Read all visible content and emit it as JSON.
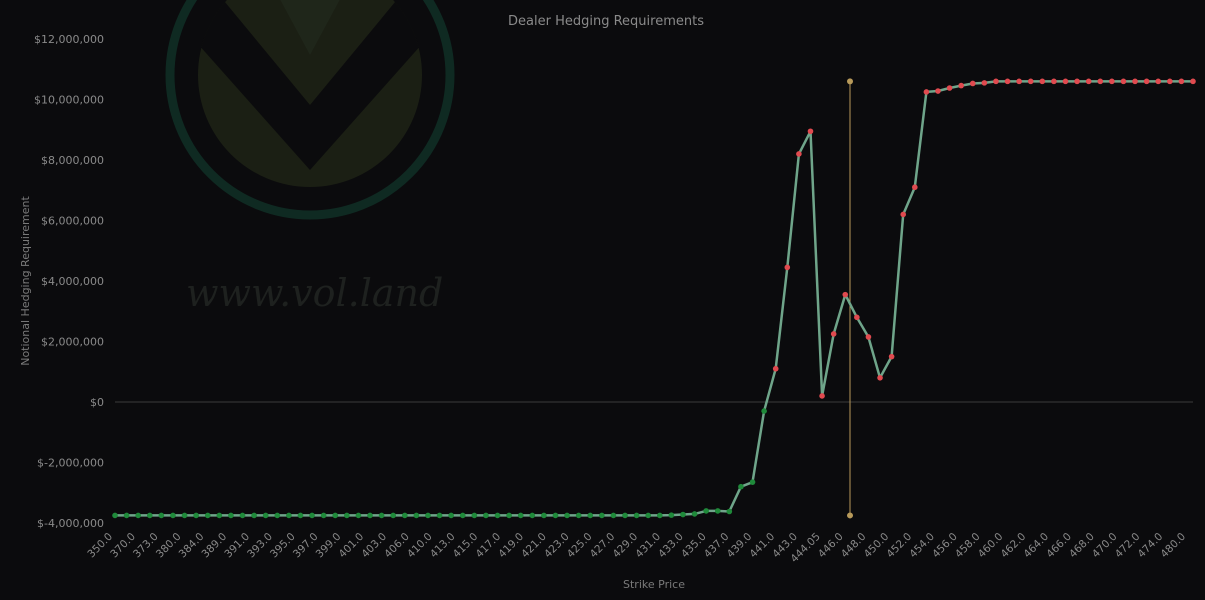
{
  "chart_data": {
    "type": "line",
    "title": "Dealer Hedging Requirements",
    "xlabel": "Strike Price",
    "ylabel": "Notional Hedging Requirement",
    "ylim": [
      -4000000,
      12000000
    ],
    "yticks": [
      {
        "value": 12000000,
        "label": "$12,000,000"
      },
      {
        "value": 10000000,
        "label": "$10,000,000"
      },
      {
        "value": 8000000,
        "label": "$8,000,000"
      },
      {
        "value": 6000000,
        "label": "$6,000,000"
      },
      {
        "value": 4000000,
        "label": "$4,000,000"
      },
      {
        "value": 2000000,
        "label": "$2,000,000"
      },
      {
        "value": 0,
        "label": "$0"
      },
      {
        "value": -2000000,
        "label": "$-2,000,000"
      },
      {
        "value": -4000000,
        "label": "$-4,000,000"
      }
    ],
    "xtick_labels": [
      "350.0",
      "370.0",
      "373.0",
      "380.0",
      "384.0",
      "389.0",
      "391.0",
      "393.0",
      "395.0",
      "397.0",
      "399.0",
      "401.0",
      "403.0",
      "406.0",
      "410.0",
      "413.0",
      "415.0",
      "417.0",
      "419.0",
      "421.0",
      "423.0",
      "425.0",
      "427.0",
      "429.0",
      "431.0",
      "433.0",
      "435.0",
      "437.0",
      "439.0",
      "441.0",
      "443.0",
      "444.05",
      "446.0",
      "448.0",
      "450.0",
      "452.0",
      "454.0",
      "456.0",
      "458.0",
      "460.0",
      "462.0",
      "464.0",
      "466.0",
      "468.0",
      "470.0",
      "472.0",
      "474.0",
      "480.0"
    ],
    "current_price": {
      "label": "444.05",
      "ymin": -3750000,
      "ymax": 10600000
    },
    "values": [
      -3750000,
      -3750000,
      -3750000,
      -3750000,
      -3750000,
      -3750000,
      -3750000,
      -3750000,
      -3750000,
      -3750000,
      -3750000,
      -3750000,
      -3750000,
      -3750000,
      -3750000,
      -3750000,
      -3750000,
      -3750000,
      -3750000,
      -3750000,
      -3750000,
      -3750000,
      -3750000,
      -3750000,
      -3750000,
      -3750000,
      -3750000,
      -3750000,
      -3750000,
      -3750000,
      -3750000,
      -3750000,
      -3750000,
      -3750000,
      -3750000,
      -3750000,
      -3750000,
      -3750000,
      -3750000,
      -3750000,
      -3750000,
      -3750000,
      -3750000,
      -3750000,
      -3750000,
      -3750000,
      -3750000,
      -3750000,
      -3740000,
      -3720000,
      -3700000,
      -3600000,
      -3600000,
      -3620000,
      -2800000,
      -2650000,
      -300000,
      1100000,
      4450000,
      8200000,
      8950000,
      200000,
      2250000,
      3550000,
      2800000,
      2150000,
      800000,
      1500000,
      6200000,
      7100000,
      10250000,
      10280000,
      10380000,
      10460000,
      10530000,
      10550000,
      10600000,
      10600000,
      10600000,
      10600000,
      10600000,
      10600000,
      10600000,
      10600000,
      10600000,
      10600000,
      10600000,
      10600000,
      10600000,
      10600000,
      10600000,
      10600000,
      10600000,
      10600000
    ],
    "positive_color": "#e04a4f",
    "negative_color": "#1f8a3a",
    "line_color": "#6fa58a",
    "price_line_color": "#b89a5a",
    "grid": false
  },
  "watermark": {
    "text": "www.vol.land"
  }
}
